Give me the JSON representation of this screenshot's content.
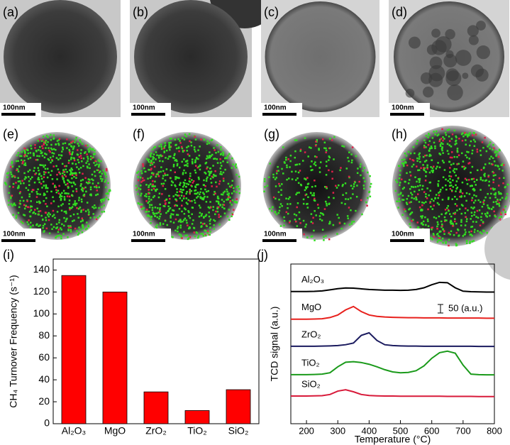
{
  "panel_labels": [
    "(a)",
    "(b)",
    "(c)",
    "(d)",
    "(e)",
    "(f)",
    "(g)",
    "(h)",
    "(i)",
    "(j)"
  ],
  "scale_bars": [
    "100nm",
    "100nm",
    "100nm",
    "100nm",
    "100nm",
    "100nm",
    "100nm",
    "100nm"
  ],
  "chart_data": [
    {
      "type": "bar",
      "y_label": "CH₄ Turnover Frequency (s⁻¹)",
      "categories": [
        "Al₂O₃",
        "MgO",
        "ZrO₂",
        "TiO₂",
        "SiO₂"
      ],
      "values": [
        135,
        120,
        29,
        12,
        31
      ],
      "color": "#ff0000",
      "ylim": [
        0,
        150
      ],
      "yticks": [
        0,
        20,
        40,
        60,
        80,
        100,
        120,
        140
      ]
    },
    {
      "type": "line",
      "x_label": "Temperature (°C)",
      "y_label": "TCD signal (a.u.)",
      "x": [
        150,
        175,
        200,
        225,
        250,
        275,
        300,
        325,
        350,
        375,
        400,
        425,
        450,
        475,
        500,
        525,
        550,
        575,
        600,
        625,
        650,
        675,
        700,
        725,
        750,
        775,
        800
      ],
      "xlim": [
        150,
        800
      ],
      "xticks": [
        200,
        300,
        400,
        500,
        600,
        700,
        800
      ],
      "ylim": [
        0,
        940
      ],
      "scale_bar": {
        "value": 50,
        "label": "50 (a.u.)"
      },
      "series": [
        {
          "name": "Al₂O₃",
          "color": "#000000",
          "values": [
            778,
            778,
            778,
            779,
            782,
            788,
            795,
            799,
            798,
            794,
            790,
            788,
            786,
            786,
            785,
            786,
            790,
            800,
            818,
            832,
            830,
            800,
            780,
            777,
            776,
            775,
            775
          ]
        },
        {
          "name": "MgO",
          "color": "#e8201c",
          "values": [
            615,
            615,
            615,
            616,
            618,
            625,
            640,
            670,
            690,
            660,
            640,
            632,
            628,
            626,
            625,
            624,
            624,
            623,
            623,
            623,
            622,
            622,
            622,
            622,
            622,
            621,
            621
          ]
        },
        {
          "name": "ZrO₂",
          "color": "#1a1a5e",
          "values": [
            456,
            456,
            456,
            456,
            457,
            458,
            460,
            465,
            475,
            520,
            535,
            490,
            465,
            460,
            458,
            457,
            457,
            456,
            456,
            456,
            456,
            456,
            456,
            456,
            455,
            455,
            455
          ]
        },
        {
          "name": "TiO₂",
          "color": "#1a9a1a",
          "values": [
            289,
            289,
            289,
            290,
            292,
            300,
            335,
            362,
            365,
            360,
            350,
            335,
            318,
            305,
            300,
            302,
            312,
            340,
            385,
            418,
            427,
            415,
            345,
            292,
            289,
            288,
            288
          ]
        },
        {
          "name": "SiO₂",
          "color": "#d81a3a",
          "values": [
            163,
            163,
            163,
            164,
            165,
            172,
            192,
            200,
            188,
            172,
            166,
            164,
            163,
            163,
            162,
            162,
            162,
            162,
            162,
            162,
            161,
            161,
            161,
            161,
            160,
            160,
            160
          ]
        }
      ]
    }
  ]
}
